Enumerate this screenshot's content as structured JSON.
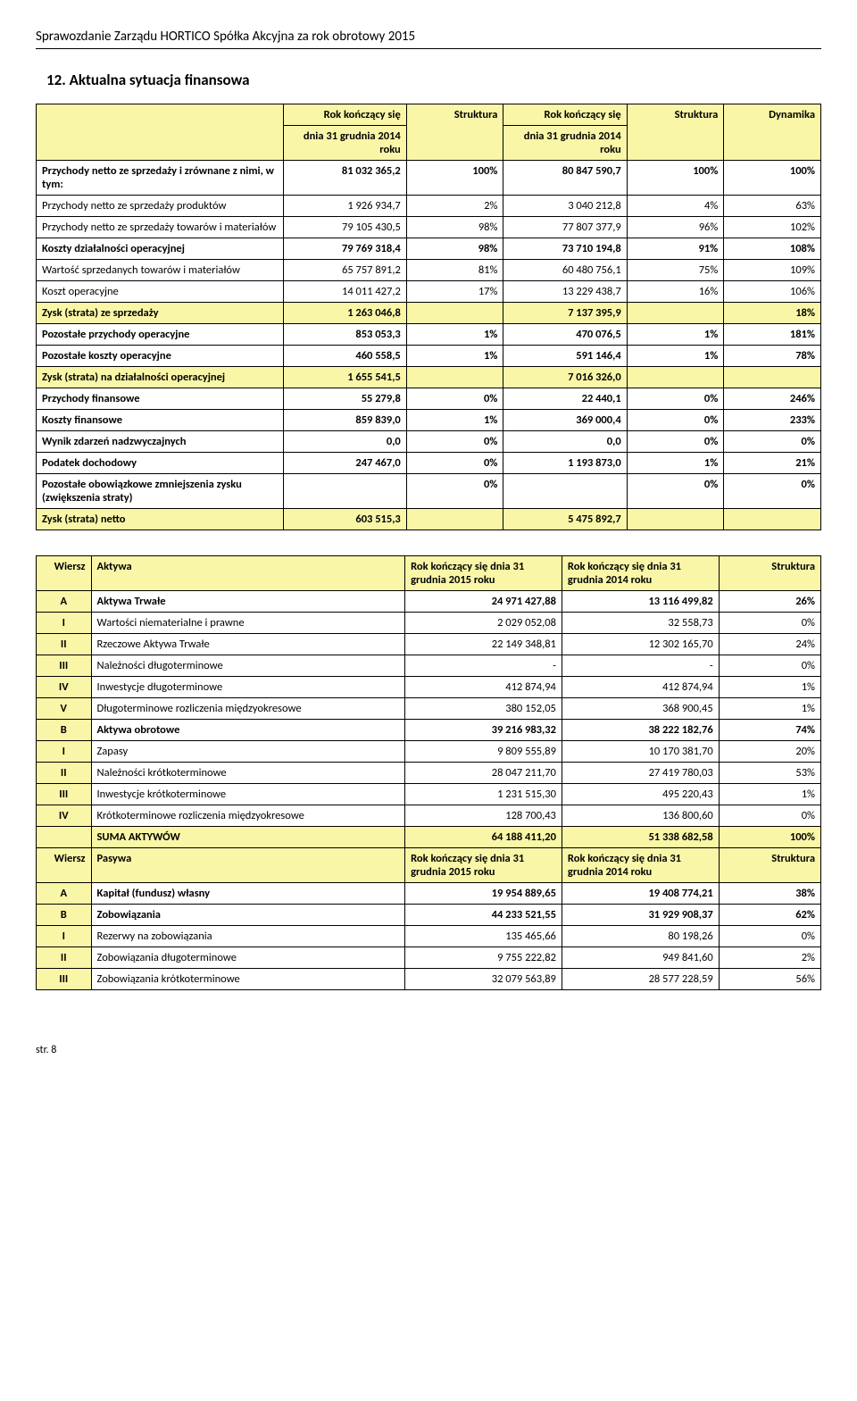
{
  "document": {
    "header": "Sprawozdanie Zarządu HORTICO Spółka Akcyjna za rok obrotowy 2015",
    "section_title": "12. Aktualna sytuacja finansowa",
    "footer": "str. 8"
  },
  "table1": {
    "headers": {
      "period": "Rok kończący się",
      "date": "dnia 31 grudnia 2014 roku",
      "structure": "Struktura",
      "dynamics": "Dynamika"
    },
    "rows": [
      {
        "label": "Przychody netto ze sprzedaży i zrównane z nimi, w tym:",
        "v1": "81 032 365,2",
        "s1": "100%",
        "v2": "80 847 590,7",
        "s2": "100%",
        "dyn": "100%",
        "bold": true
      },
      {
        "label": "Przychody netto ze sprzedaży produktów",
        "v1": "1 926 934,7",
        "s1": "2%",
        "v2": "3 040 212,8",
        "s2": "4%",
        "dyn": "63%"
      },
      {
        "label": "Przychody netto ze sprzedaży towarów i materiałów",
        "v1": "79 105 430,5",
        "s1": "98%",
        "v2": "77 807 377,9",
        "s2": "96%",
        "dyn": "102%"
      },
      {
        "label": "Koszty działalności operacyjnej",
        "v1": "79 769 318,4",
        "s1": "98%",
        "v2": "73 710 194,8",
        "s2": "91%",
        "dyn": "108%",
        "bold": true
      },
      {
        "label": "Wartość sprzedanych towarów i materiałów",
        "v1": "65 757 891,2",
        "s1": "81%",
        "v2": "60 480 756,1",
        "s2": "75%",
        "dyn": "109%"
      },
      {
        "label": "Koszt operacyjne",
        "v1": "14 011 427,2",
        "s1": "17%",
        "v2": "13 229 438,7",
        "s2": "16%",
        "dyn": "106%"
      },
      {
        "label": "Zysk (strata) ze sprzedaży",
        "v1": "1 263 046,8",
        "s1": "",
        "v2": "7 137 395,9",
        "s2": "",
        "dyn": "18%",
        "hl": true
      },
      {
        "label": "Pozostałe przychody operacyjne",
        "v1": "853 053,3",
        "s1": "1%",
        "v2": "470 076,5",
        "s2": "1%",
        "dyn": "181%",
        "bold": true
      },
      {
        "label": "Pozostałe koszty operacyjne",
        "v1": "460 558,5",
        "s1": "1%",
        "v2": "591 146,4",
        "s2": "1%",
        "dyn": "78%",
        "bold": true
      },
      {
        "label": "Zysk (strata) na działalności operacyjnej",
        "v1": "1 655 541,5",
        "s1": "",
        "v2": "7 016 326,0",
        "s2": "",
        "dyn": "",
        "hl": true
      },
      {
        "label": "Przychody finansowe",
        "v1": "55 279,8",
        "s1": "0%",
        "v2": "22 440,1",
        "s2": "0%",
        "dyn": "246%",
        "bold": true
      },
      {
        "label": "Koszty finansowe",
        "v1": "859 839,0",
        "s1": "1%",
        "v2": "369 000,4",
        "s2": "0%",
        "dyn": "233%",
        "bold": true
      },
      {
        "label": "Wynik zdarzeń nadzwyczajnych",
        "v1": "0,0",
        "s1": "0%",
        "v2": "0,0",
        "s2": "0%",
        "dyn": "0%",
        "bold": true
      },
      {
        "label": "Podatek dochodowy",
        "v1": "247 467,0",
        "s1": "0%",
        "v2": "1 193 873,0",
        "s2": "1%",
        "dyn": "21%",
        "bold": true
      },
      {
        "label": "Pozostałe obowiązkowe zmniejszenia zysku (zwiększenia straty)",
        "v1": "",
        "s1": "0%",
        "v2": "",
        "s2": "0%",
        "dyn": "0%",
        "bold": true
      },
      {
        "label": "Zysk (strata) netto",
        "v1": "603 515,3",
        "s1": "",
        "v2": "5 475 892,7",
        "s2": "",
        "dyn": "",
        "hl": true
      }
    ]
  },
  "table2": {
    "headers": {
      "wiersz": "Wiersz",
      "aktywa": "Aktywa",
      "pasywa": "Pasywa",
      "period": "Rok kończący się dnia 31 grudnia",
      "y2015": "2015 roku",
      "y2014": "2014 roku",
      "structure": "Struktura"
    },
    "aktywa_rows": [
      {
        "w": "A",
        "label": "Aktywa Trwałe",
        "v1": "24 971 427,88",
        "v2": "13 116 499,82",
        "s": "26%",
        "bold": true
      },
      {
        "w": "I",
        "label": "Wartości niematerialne i prawne",
        "v1": "2 029 052,08",
        "v2": "32 558,73",
        "s": "0%"
      },
      {
        "w": "II",
        "label": "Rzeczowe Aktywa Trwałe",
        "v1": "22 149 348,81",
        "v2": "12 302 165,70",
        "s": "24%"
      },
      {
        "w": "III",
        "label": "Należności długoterminowe",
        "v1": "-",
        "v2": "-",
        "s": "0%"
      },
      {
        "w": "IV",
        "label": "Inwestycje długoterminowe",
        "v1": "412 874,94",
        "v2": "412 874,94",
        "s": "1%"
      },
      {
        "w": "V",
        "label": "Długoterminowe rozliczenia międzyokresowe",
        "v1": "380 152,05",
        "v2": "368 900,45",
        "s": "1%"
      },
      {
        "w": "B",
        "label": "Aktywa obrotowe",
        "v1": "39 216 983,32",
        "v2": "38 222 182,76",
        "s": "74%",
        "bold": true
      },
      {
        "w": "I",
        "label": "Zapasy",
        "v1": "9 809 555,89",
        "v2": "10 170 381,70",
        "s": "20%"
      },
      {
        "w": "II",
        "label": "Należności krótkoterminowe",
        "v1": "28 047 211,70",
        "v2": "27 419 780,03",
        "s": "53%"
      },
      {
        "w": "III",
        "label": "Inwestycje krótkoterminowe",
        "v1": "1 231 515,30",
        "v2": "495 220,43",
        "s": "1%"
      },
      {
        "w": "IV",
        "label": "Krótkoterminowe rozliczenia międzyokresowe",
        "v1": "128 700,43",
        "v2": "136 800,60",
        "s": "0%"
      },
      {
        "w": "",
        "label": "SUMA AKTYWÓW",
        "v1": "64 188 411,20",
        "v2": "51 338 682,58",
        "s": "100%",
        "bold": true,
        "hl": true
      }
    ],
    "pasywa_rows": [
      {
        "w": "A",
        "label": "Kapitał (fundusz) własny",
        "v1": "19 954 889,65",
        "v2": "19 408 774,21",
        "s": "38%",
        "bold": true
      },
      {
        "w": "B",
        "label": "Zobowiązania",
        "v1": "44 233 521,55",
        "v2": "31 929 908,37",
        "s": "62%",
        "bold": true
      },
      {
        "w": "I",
        "label": "Rezerwy na zobowiązania",
        "v1": "135 465,66",
        "v2": "80 198,26",
        "s": "0%"
      },
      {
        "w": "II",
        "label": "Zobowiązania długoterminowe",
        "v1": "9 755 222,82",
        "v2": "949 841,60",
        "s": "2%"
      },
      {
        "w": "III",
        "label": "Zobowiązania krótkoterminowe",
        "v1": "32 079 563,89",
        "v2": "28 577 228,59",
        "s": "56%"
      }
    ]
  },
  "styling": {
    "highlight_bg": "#f9f6a7",
    "border_color": "#000000",
    "body_font": "Calibri",
    "body_font_size_pt": 10,
    "section_title_size_pt": 13
  }
}
